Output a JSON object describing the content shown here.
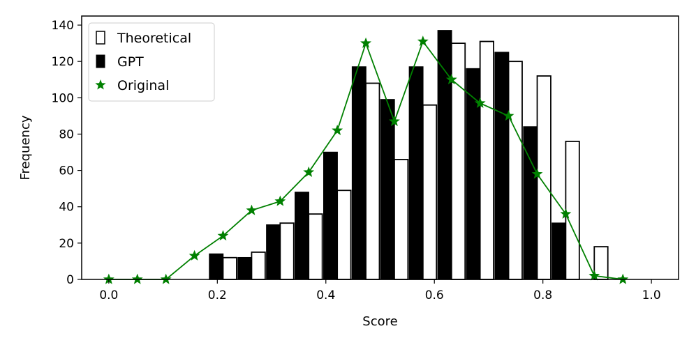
{
  "chart_data": {
    "type": "bar",
    "xlabel": "Score",
    "ylabel": "Frequency",
    "xlim": [
      -0.05,
      1.05
    ],
    "ylim": [
      0,
      145
    ],
    "xticks": [
      "0.0",
      "0.2",
      "0.4",
      "0.6",
      "0.8",
      "1.0"
    ],
    "xtick_values": [
      0.0,
      0.2,
      0.4,
      0.6,
      0.8,
      1.0
    ],
    "yticks": [
      "0",
      "20",
      "40",
      "60",
      "80",
      "100",
      "120",
      "140"
    ],
    "ytick_values": [
      0,
      20,
      40,
      60,
      80,
      100,
      120,
      140
    ],
    "grid": false,
    "legend_position": "top-left",
    "series": [
      {
        "name": "Theoretical",
        "kind": "bar",
        "style": "hollow",
        "x": [
          0.0,
          0.0526,
          0.1053,
          0.1579,
          0.2105,
          0.2632,
          0.3158,
          0.3684,
          0.4211,
          0.4737,
          0.5263,
          0.5789,
          0.6316,
          0.6842,
          0.7368,
          0.7895,
          0.8421,
          0.8947,
          0.9474
        ],
        "values": [
          0,
          0,
          0,
          0,
          12,
          15,
          31,
          36,
          49,
          108,
          66,
          96,
          130,
          131,
          120,
          112,
          76,
          18,
          0
        ]
      },
      {
        "name": "GPT",
        "kind": "bar",
        "style": "filled",
        "color": "#000000",
        "x": [
          0.0,
          0.0526,
          0.1053,
          0.1579,
          0.2105,
          0.2632,
          0.3158,
          0.3684,
          0.4211,
          0.4737,
          0.5263,
          0.5789,
          0.6316,
          0.6842,
          0.7368,
          0.7895,
          0.8421,
          0.8947,
          0.9474
        ],
        "values": [
          0,
          0,
          0,
          0,
          14,
          12,
          30,
          48,
          70,
          117,
          99,
          117,
          137,
          116,
          125,
          84,
          31,
          0,
          0
        ]
      },
      {
        "name": "Original",
        "kind": "line",
        "marker": "star",
        "color": "#008000",
        "x": [
          0.0,
          0.0526,
          0.1053,
          0.1579,
          0.2105,
          0.2632,
          0.3158,
          0.3684,
          0.4211,
          0.4737,
          0.5263,
          0.5789,
          0.6316,
          0.6842,
          0.7368,
          0.7895,
          0.8421,
          0.8947,
          0.9474
        ],
        "values": [
          0,
          0,
          0,
          13,
          24,
          38,
          43,
          59,
          82,
          130,
          87,
          131,
          110,
          97,
          90,
          58,
          36,
          2,
          0
        ]
      }
    ]
  }
}
